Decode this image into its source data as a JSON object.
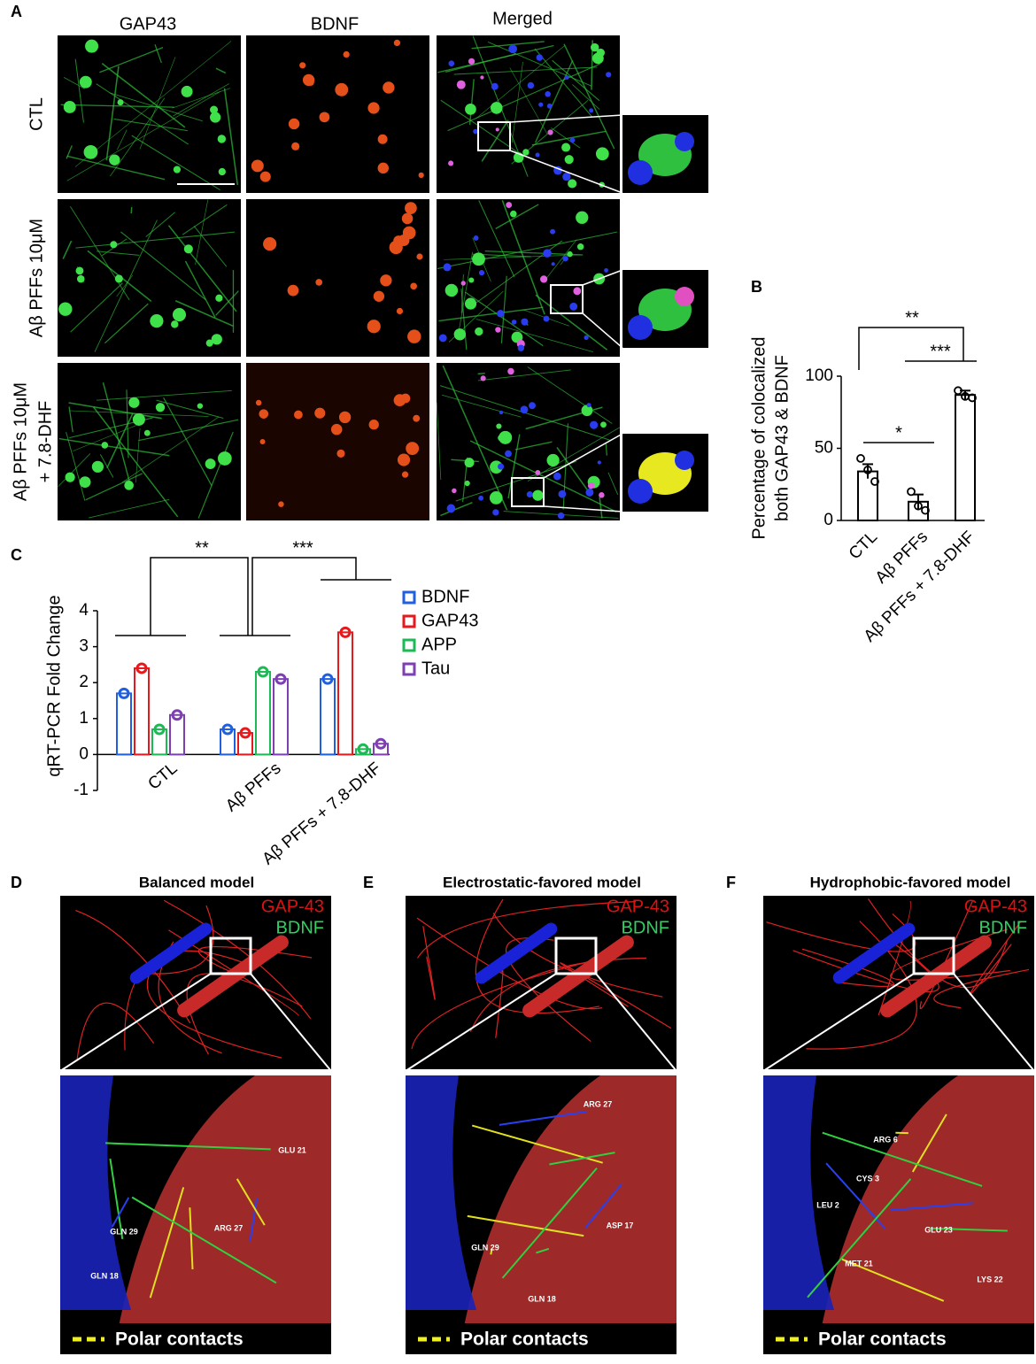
{
  "panel_labels": [
    "A",
    "B",
    "C",
    "D",
    "E",
    "F"
  ],
  "panel_a": {
    "columns": [
      "GAP43",
      "BDNF",
      "Merged"
    ],
    "rows": [
      [
        "CTL"
      ],
      [
        "Aβ PFFs 10μM"
      ],
      [
        "Aβ PFFs 10μM",
        "+ 7.8-DHF"
      ]
    ]
  },
  "chart_data": [
    {
      "type": "bar",
      "categories": [
        "CTL",
        "Aβ PFFs",
        "Aβ PFFs + 7.8-DHF"
      ],
      "values": [
        34,
        13,
        87
      ],
      "errors": [
        5,
        5,
        3
      ],
      "points": [
        [
          43,
          35,
          27
        ],
        [
          20,
          10,
          7
        ],
        [
          90,
          86,
          85
        ]
      ],
      "color": "#000000",
      "y_label": [
        "Percentage of colocalized",
        "both GAP43 & BDNF"
      ],
      "ylim": [
        0,
        100
      ],
      "yticks": [
        0,
        50,
        100
      ],
      "annotations": [
        "**",
        "***",
        "*"
      ]
    },
    {
      "type": "grouped-bar",
      "categories": [
        "CTL",
        "Aβ PFFs",
        "Aβ PFFs + 7.8-DHF"
      ],
      "series": [
        {
          "name": "BDNF",
          "color": "#1f5fe0",
          "values": [
            1.7,
            0.7,
            2.1
          ]
        },
        {
          "name": "GAP43",
          "color": "#e8191c",
          "values": [
            2.4,
            0.6,
            3.4
          ]
        },
        {
          "name": "APP",
          "color": "#1db954",
          "values": [
            0.7,
            2.3,
            0.15
          ]
        },
        {
          "name": "Tau",
          "color": "#7d3fb2",
          "values": [
            1.1,
            2.1,
            0.3
          ]
        }
      ],
      "y_label": "qRT-PCR Fold Change",
      "ylim": [
        -1,
        4
      ],
      "yticks": [
        -1,
        0,
        1,
        2,
        3,
        4
      ],
      "legend": "right",
      "annotations": [
        "**",
        "***"
      ]
    }
  ],
  "models": [
    {
      "title": "Balanced model",
      "legend": [
        "GAP-43",
        "BDNF"
      ],
      "residues": [
        "GLU 21",
        "GLN 29",
        "ARG 27",
        "GLN 18"
      ],
      "contacts": "Polar contacts"
    },
    {
      "title": "Electrostatic-favored model",
      "legend": [
        "GAP-43",
        "BDNF"
      ],
      "residues": [
        "ARG 27",
        "ASP 17",
        "GLN 29",
        "GLN 18"
      ],
      "contacts": "Polar contacts"
    },
    {
      "title": "Hydrophobic-favored model",
      "legend": [
        "GAP-43",
        "BDNF"
      ],
      "residues": [
        "ARG 6",
        "CYS 3",
        "LEU 2",
        "GLU 23",
        "MET 21",
        "LYS 22"
      ],
      "contacts": "Polar contacts"
    }
  ]
}
